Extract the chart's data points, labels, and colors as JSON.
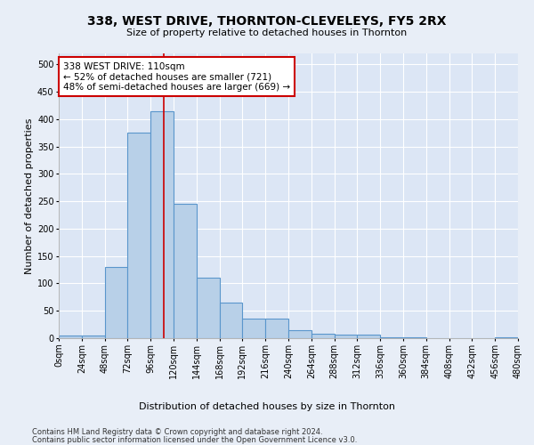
{
  "title": "338, WEST DRIVE, THORNTON-CLEVELEYS, FY5 2RX",
  "subtitle": "Size of property relative to detached houses in Thornton",
  "xlabel": "Distribution of detached houses by size in Thornton",
  "ylabel": "Number of detached properties",
  "bar_heights": [
    5,
    5,
    130,
    375,
    415,
    245,
    110,
    65,
    35,
    35,
    14,
    8,
    6,
    6,
    1,
    1,
    0,
    0,
    0,
    1
  ],
  "bin_size": 24,
  "n_bins": 20,
  "bar_color": "#b8d0e8",
  "bar_edge_color": "#5a96cc",
  "property_line_x": 110,
  "property_line_color": "#cc0000",
  "annotation_text": "338 WEST DRIVE: 110sqm\n← 52% of detached houses are smaller (721)\n48% of semi-detached houses are larger (669) →",
  "annotation_box_color": "#cc0000",
  "ylim": [
    0,
    520
  ],
  "yticks": [
    0,
    50,
    100,
    150,
    200,
    250,
    300,
    350,
    400,
    450,
    500
  ],
  "footer_line1": "Contains HM Land Registry data © Crown copyright and database right 2024.",
  "footer_line2": "Contains public sector information licensed under the Open Government Licence v3.0.",
  "bg_color": "#e8eef7",
  "plot_bg_color": "#dce6f5",
  "title_fontsize": 10,
  "subtitle_fontsize": 8,
  "axis_label_fontsize": 8,
  "tick_fontsize": 7,
  "annotation_fontsize": 7.5,
  "footer_fontsize": 6
}
